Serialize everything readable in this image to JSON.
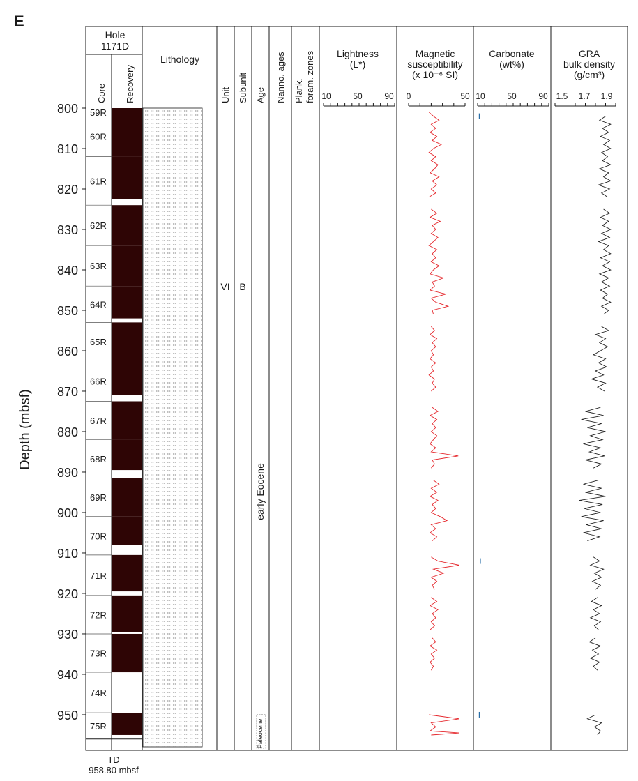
{
  "figure_label": "E",
  "hole": {
    "line1": "Hole",
    "line2": "1171D"
  },
  "columns": {
    "core": "Core",
    "recovery": "Recovery",
    "lithology": "Lithology",
    "unit": "Unit",
    "subunit": "Subunit",
    "age": "Age",
    "nanno": "Nanno. ages",
    "plank1": "Plank.",
    "plank2": "foram. zones"
  },
  "panels": {
    "lightness": {
      "title1": "Lightness",
      "title2": "(L*)",
      "ticks": [
        "10",
        "50",
        "90"
      ]
    },
    "magsus": {
      "title1": "Magnetic",
      "title2": "susceptibility",
      "title3": "(x 10⁻⁶ SI)",
      "ticks": [
        "0",
        "50"
      ]
    },
    "carbonate": {
      "title1": "Carbonate",
      "title2": "(wt%)",
      "ticks": [
        "10",
        "50",
        "90"
      ]
    },
    "gra": {
      "title1": "GRA",
      "title2": "bulk density",
      "title3": "(g/cm³)",
      "ticks": [
        "1.5",
        "1.7",
        "1.9"
      ]
    }
  },
  "unit_label": "VI",
  "subunit_label": "B",
  "ages": {
    "upper": "early Eocene",
    "lower": "Paleocene"
  },
  "td": {
    "line1": "TD",
    "line2": "958.80 mbsf"
  },
  "y_axis_label": "Depth (mbsf)",
  "colors": {
    "recovery": "#2e0505",
    "magsus": "#e5262b",
    "carbonate": "#2a6fa8",
    "gra": "#222222"
  },
  "chart_data": {
    "type": "line",
    "ylabel": "Depth (mbsf)",
    "ylim": [
      800,
      958.8
    ],
    "y_reversed": true,
    "depth_ticks": [
      800,
      810,
      820,
      830,
      840,
      850,
      860,
      870,
      880,
      890,
      900,
      910,
      920,
      930,
      940,
      950
    ],
    "cores": [
      {
        "name": "59R",
        "top": 800,
        "rec_bottom": 802
      },
      {
        "name": "60R",
        "top": 802,
        "rec_bottom": 812
      },
      {
        "name": "61R",
        "top": 812,
        "rec_bottom": 822.5
      },
      {
        "name": "62R",
        "top": 824,
        "rec_bottom": 834
      },
      {
        "name": "63R",
        "top": 834,
        "rec_bottom": 844
      },
      {
        "name": "64R",
        "top": 844,
        "rec_bottom": 852
      },
      {
        "name": "65R",
        "top": 853,
        "rec_bottom": 862.5
      },
      {
        "name": "66R",
        "top": 862.5,
        "rec_bottom": 871
      },
      {
        "name": "67R",
        "top": 872.5,
        "rec_bottom": 882
      },
      {
        "name": "68R",
        "top": 882,
        "rec_bottom": 889.5
      },
      {
        "name": "69R",
        "top": 891.5,
        "rec_bottom": 901
      },
      {
        "name": "70R",
        "top": 901,
        "rec_bottom": 908
      },
      {
        "name": "71R",
        "top": 910.5,
        "rec_bottom": 919.5
      },
      {
        "name": "72R",
        "top": 920.5,
        "rec_bottom": 929.5
      },
      {
        "name": "73R",
        "top": 930,
        "rec_bottom": 939.5
      },
      {
        "name": "74R",
        "top": 939.5,
        "rec_bottom": 939.5
      },
      {
        "name": "75R",
        "top": 949.5,
        "rec_bottom": 955
      }
    ],
    "age_boundary": 950,
    "series": [
      {
        "name": "Magnetic susceptibility",
        "xlim": [
          0,
          50
        ],
        "points": [
          [
            801,
            18
          ],
          [
            802,
            22
          ],
          [
            803,
            27
          ],
          [
            804,
            20
          ],
          [
            805,
            24
          ],
          [
            806,
            19
          ],
          [
            807,
            25
          ],
          [
            808,
            21
          ],
          [
            809,
            29
          ],
          [
            810,
            22
          ],
          [
            811,
            18
          ],
          [
            812,
            24
          ],
          [
            813,
            20
          ],
          [
            814,
            26
          ],
          [
            815,
            23
          ],
          [
            816,
            19
          ],
          [
            817,
            27
          ],
          [
            818,
            21
          ],
          [
            819,
            25
          ],
          [
            820,
            20
          ],
          [
            821,
            24
          ],
          [
            822,
            18
          ],
          [
            825,
            20
          ],
          [
            826,
            25
          ],
          [
            827,
            19
          ],
          [
            828,
            28
          ],
          [
            829,
            21
          ],
          [
            830,
            24
          ],
          [
            831,
            20
          ],
          [
            832,
            26
          ],
          [
            833,
            22
          ],
          [
            834,
            18
          ],
          [
            835,
            25
          ],
          [
            836,
            21
          ],
          [
            837,
            24
          ],
          [
            838,
            20
          ],
          [
            839,
            27
          ],
          [
            840,
            22
          ],
          [
            841,
            19
          ],
          [
            842,
            31
          ],
          [
            843,
            21
          ],
          [
            844,
            23
          ],
          [
            845,
            19
          ],
          [
            846,
            33
          ],
          [
            847,
            20
          ],
          [
            848,
            24
          ],
          [
            849,
            35
          ],
          [
            850,
            21
          ],
          [
            851,
            22
          ],
          [
            854,
            20
          ],
          [
            855,
            23
          ],
          [
            856,
            19
          ],
          [
            857,
            25
          ],
          [
            858,
            21
          ],
          [
            859,
            24
          ],
          [
            860,
            20
          ],
          [
            861,
            22
          ],
          [
            862,
            19
          ],
          [
            863,
            24
          ],
          [
            864,
            20
          ],
          [
            865,
            22
          ],
          [
            866,
            18
          ],
          [
            867,
            23
          ],
          [
            868,
            21
          ],
          [
            869,
            24
          ],
          [
            870,
            20
          ],
          [
            874,
            21
          ],
          [
            875,
            26
          ],
          [
            876,
            19
          ],
          [
            877,
            25
          ],
          [
            878,
            21
          ],
          [
            879,
            24
          ],
          [
            880,
            20
          ],
          [
            881,
            25
          ],
          [
            882,
            22
          ],
          [
            883,
            19
          ],
          [
            884,
            24
          ],
          [
            885,
            20
          ],
          [
            886,
            44
          ],
          [
            887,
            21
          ],
          [
            888,
            23
          ],
          [
            889,
            20
          ],
          [
            892,
            22
          ],
          [
            893,
            27
          ],
          [
            894,
            20
          ],
          [
            895,
            25
          ],
          [
            896,
            19
          ],
          [
            897,
            26
          ],
          [
            898,
            21
          ],
          [
            899,
            24
          ],
          [
            900,
            20
          ],
          [
            901,
            28
          ],
          [
            902,
            34
          ],
          [
            903,
            20
          ],
          [
            904,
            24
          ],
          [
            905,
            19
          ],
          [
            906,
            25
          ],
          [
            907,
            21
          ],
          [
            911,
            20
          ],
          [
            912,
            26
          ],
          [
            913,
            45
          ],
          [
            914,
            22
          ],
          [
            915,
            31
          ],
          [
            916,
            20
          ],
          [
            917,
            25
          ],
          [
            918,
            21
          ],
          [
            919,
            23
          ],
          [
            921,
            20
          ],
          [
            922,
            25
          ],
          [
            923,
            19
          ],
          [
            924,
            26
          ],
          [
            925,
            21
          ],
          [
            926,
            24
          ],
          [
            927,
            20
          ],
          [
            928,
            23
          ],
          [
            929,
            19
          ],
          [
            931,
            21
          ],
          [
            932,
            24
          ],
          [
            933,
            19
          ],
          [
            934,
            25
          ],
          [
            935,
            20
          ],
          [
            936,
            23
          ],
          [
            937,
            19
          ],
          [
            938,
            22
          ],
          [
            939,
            20
          ],
          [
            950,
            18
          ],
          [
            951,
            45
          ],
          [
            952,
            20
          ],
          [
            953,
            24
          ],
          [
            954,
            19
          ],
          [
            954.5,
            45
          ],
          [
            955,
            20
          ]
        ]
      },
      {
        "name": "Carbonate",
        "xlim": [
          10,
          90
        ],
        "points": [
          [
            802,
            12
          ],
          [
            912,
            13
          ],
          [
            950,
            12
          ]
        ]
      },
      {
        "name": "GRA bulk density",
        "xlim": [
          1.4,
          2.0
        ],
        "points": [
          [
            802,
            1.9
          ],
          [
            803,
            1.84
          ],
          [
            804,
            1.95
          ],
          [
            805,
            1.87
          ],
          [
            806,
            1.93
          ],
          [
            807,
            1.85
          ],
          [
            808,
            1.94
          ],
          [
            809,
            1.88
          ],
          [
            810,
            1.95
          ],
          [
            811,
            1.86
          ],
          [
            812,
            1.92
          ],
          [
            813,
            1.87
          ],
          [
            814,
            1.95
          ],
          [
            815,
            1.84
          ],
          [
            816,
            1.93
          ],
          [
            817,
            1.88
          ],
          [
            818,
            1.95
          ],
          [
            819,
            1.83
          ],
          [
            820,
            1.94
          ],
          [
            821,
            1.86
          ],
          [
            822,
            1.92
          ],
          [
            825,
            1.88
          ],
          [
            826,
            1.94
          ],
          [
            827,
            1.85
          ],
          [
            828,
            1.93
          ],
          [
            829,
            1.87
          ],
          [
            830,
            1.95
          ],
          [
            831,
            1.86
          ],
          [
            832,
            1.94
          ],
          [
            833,
            1.83
          ],
          [
            834,
            1.93
          ],
          [
            835,
            1.88
          ],
          [
            836,
            1.95
          ],
          [
            837,
            1.85
          ],
          [
            838,
            1.94
          ],
          [
            839,
            1.87
          ],
          [
            840,
            1.95
          ],
          [
            841,
            1.84
          ],
          [
            842,
            1.93
          ],
          [
            843,
            1.86
          ],
          [
            844,
            1.94
          ],
          [
            845,
            1.85
          ],
          [
            846,
            1.92
          ],
          [
            847,
            1.87
          ],
          [
            848,
            1.95
          ],
          [
            849,
            1.86
          ],
          [
            850,
            1.93
          ],
          [
            851,
            1.88
          ],
          [
            854,
            1.86
          ],
          [
            855,
            1.93
          ],
          [
            856,
            1.8
          ],
          [
            857,
            1.9
          ],
          [
            858,
            1.84
          ],
          [
            859,
            1.92
          ],
          [
            860,
            1.85
          ],
          [
            861,
            1.78
          ],
          [
            862,
            1.9
          ],
          [
            863,
            1.83
          ],
          [
            864,
            1.91
          ],
          [
            865,
            1.8
          ],
          [
            866,
            1.88
          ],
          [
            867,
            1.76
          ],
          [
            868,
            1.9
          ],
          [
            869,
            1.82
          ],
          [
            870,
            1.89
          ],
          [
            874,
            1.85
          ],
          [
            875,
            1.7
          ],
          [
            876,
            1.88
          ],
          [
            877,
            1.66
          ],
          [
            878,
            1.86
          ],
          [
            879,
            1.72
          ],
          [
            880,
            1.9
          ],
          [
            881,
            1.75
          ],
          [
            882,
            1.87
          ],
          [
            883,
            1.68
          ],
          [
            884,
            1.85
          ],
          [
            885,
            1.74
          ],
          [
            886,
            1.89
          ],
          [
            887,
            1.7
          ],
          [
            888,
            1.86
          ],
          [
            889,
            1.78
          ],
          [
            892,
            1.83
          ],
          [
            893,
            1.68
          ],
          [
            894,
            1.86
          ],
          [
            895,
            1.7
          ],
          [
            896,
            1.9
          ],
          [
            897,
            1.64
          ],
          [
            898,
            1.87
          ],
          [
            899,
            1.69
          ],
          [
            900,
            1.85
          ],
          [
            901,
            1.66
          ],
          [
            902,
            1.88
          ],
          [
            903,
            1.71
          ],
          [
            904,
            1.86
          ],
          [
            905,
            1.68
          ],
          [
            906,
            1.84
          ],
          [
            907,
            1.72
          ],
          [
            911,
            1.78
          ],
          [
            912,
            1.84
          ],
          [
            913,
            1.75
          ],
          [
            914,
            1.88
          ],
          [
            915,
            1.79
          ],
          [
            916,
            1.86
          ],
          [
            917,
            1.77
          ],
          [
            918,
            1.85
          ],
          [
            919,
            1.8
          ],
          [
            921,
            1.82
          ],
          [
            922,
            1.76
          ],
          [
            923,
            1.86
          ],
          [
            924,
            1.78
          ],
          [
            925,
            1.84
          ],
          [
            926,
            1.75
          ],
          [
            927,
            1.85
          ],
          [
            928,
            1.79
          ],
          [
            929,
            1.83
          ],
          [
            931,
            1.8
          ],
          [
            932,
            1.74
          ],
          [
            933,
            1.85
          ],
          [
            934,
            1.77
          ],
          [
            935,
            1.83
          ],
          [
            936,
            1.75
          ],
          [
            937,
            1.84
          ],
          [
            938,
            1.78
          ],
          [
            939,
            1.82
          ],
          [
            950,
            1.8
          ],
          [
            951,
            1.72
          ],
          [
            952,
            1.86
          ],
          [
            953,
            1.79
          ],
          [
            954,
            1.85
          ],
          [
            955,
            1.82
          ]
        ]
      }
    ]
  }
}
